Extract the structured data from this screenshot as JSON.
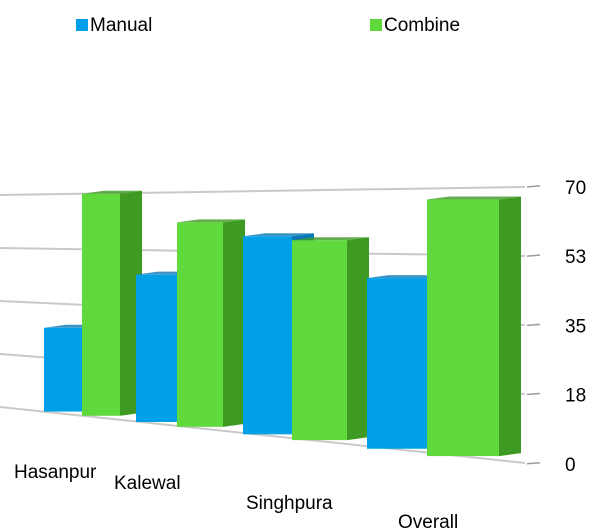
{
  "chart_data": {
    "type": "bar",
    "categories": [
      "Hasanpur",
      "Kalewal",
      "Singhpura",
      "Overall"
    ],
    "series": [
      {
        "name": "Manual",
        "values": [
          27,
          45,
          57,
          46
        ],
        "color": "#00a0e8",
        "side_color": "#0a78b8"
      },
      {
        "name": "Combine",
        "values": [
          70,
          61,
          56,
          67
        ],
        "color": "#5fd93c",
        "side_color": "#3f9a23"
      }
    ],
    "y_ticks": [
      "0",
      "18",
      "35",
      "53",
      "70"
    ],
    "ylim": [
      0,
      70
    ],
    "legend_position": "top",
    "grid": true,
    "title": "",
    "xlabel": "",
    "ylabel": ""
  }
}
